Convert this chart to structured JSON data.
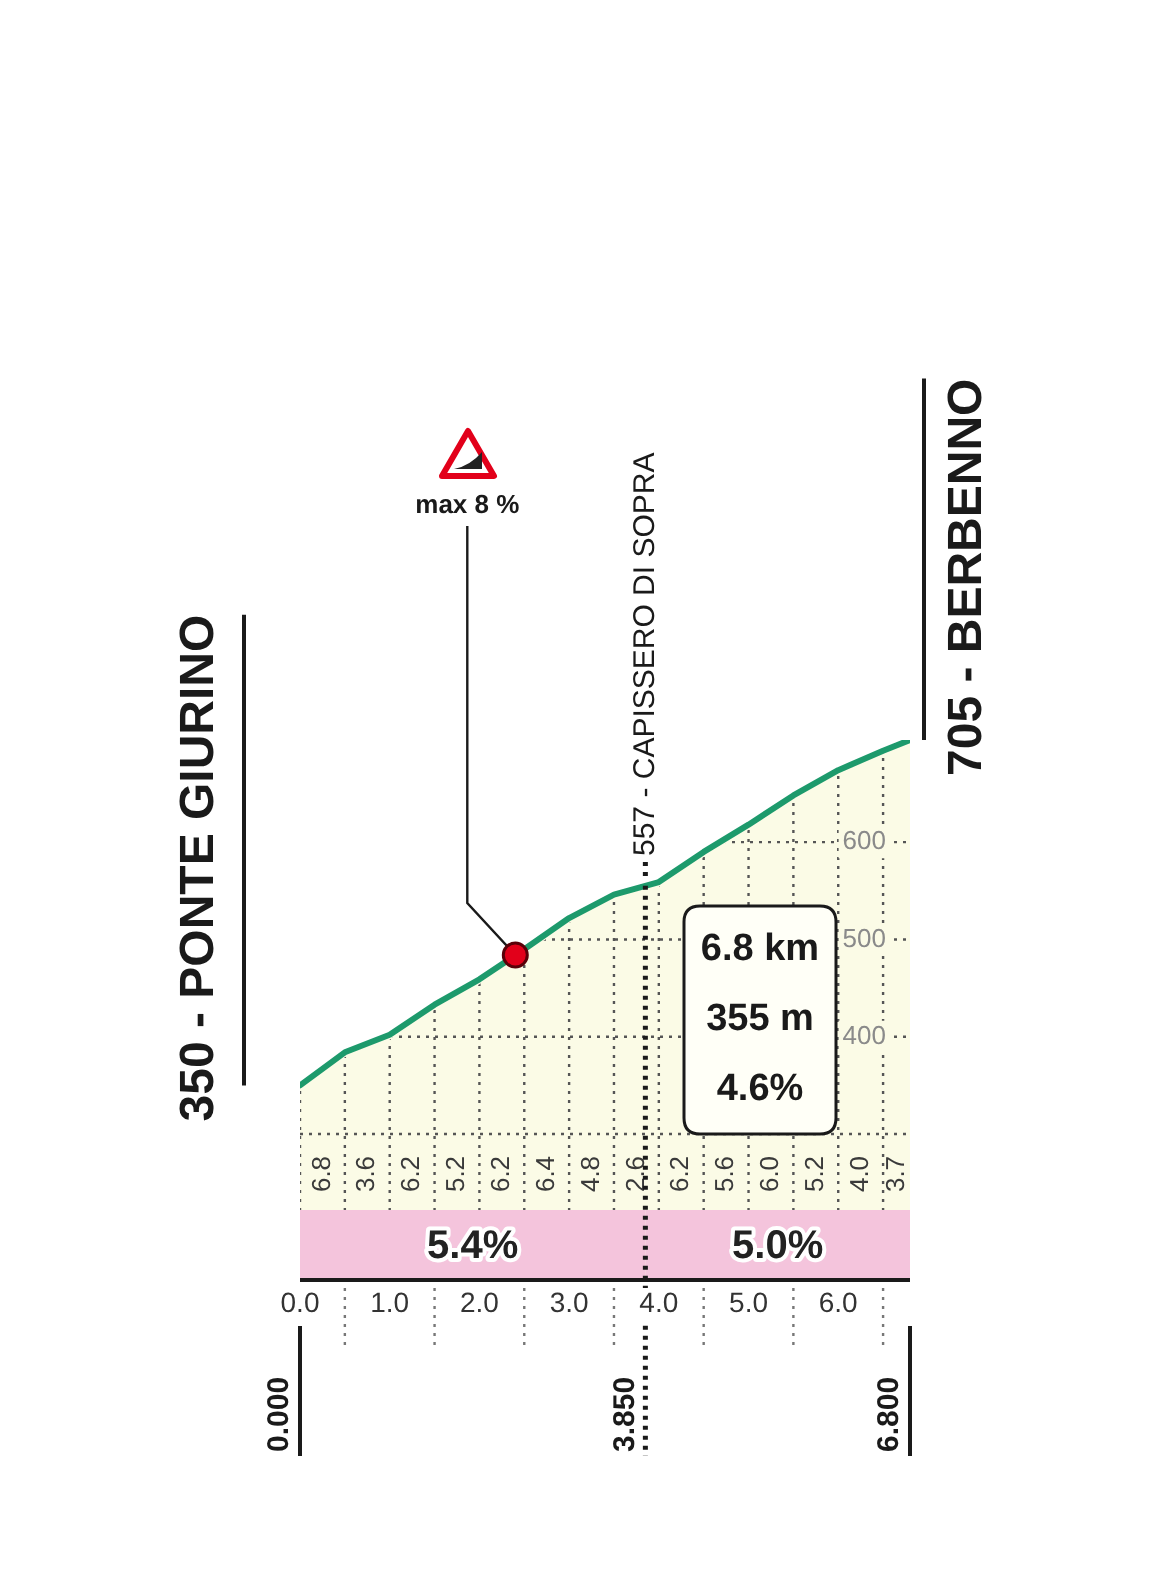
{
  "chart_data": {
    "type": "area",
    "x": [
      0,
      0.5,
      1,
      1.5,
      2,
      2.5,
      3,
      3.5,
      4,
      4.5,
      5,
      5.5,
      6,
      6.5,
      6.8
    ],
    "values": [
      350,
      384,
      402,
      433,
      459,
      490,
      522,
      546,
      559,
      590,
      618,
      648,
      674,
      694,
      705
    ],
    "color": "#1d9a6c",
    "xlim": [
      0,
      6.8
    ],
    "xticks": [
      {
        "value": 0,
        "label": "0.0"
      },
      {
        "value": 0.5,
        "label": null
      },
      {
        "value": 1,
        "label": "1.0"
      },
      {
        "value": 1.5,
        "label": null
      },
      {
        "value": 2,
        "label": "2.0"
      },
      {
        "value": 2.5,
        "label": null
      },
      {
        "value": 3,
        "label": "3.0"
      },
      {
        "value": 3.5,
        "label": null
      },
      {
        "value": 4,
        "label": "4.0"
      },
      {
        "value": 4.5,
        "label": null
      },
      {
        "value": 5,
        "label": "5.0"
      },
      {
        "value": 5.5,
        "label": null
      },
      {
        "value": 6,
        "label": "6.0"
      },
      {
        "value": 6.5,
        "label": null
      }
    ],
    "ylim": [
      150,
      705
    ],
    "yticks": [
      {
        "value": 300,
        "label": null
      },
      400,
      500,
      600
    ],
    "grid": true,
    "ref_lines": [
      {
        "axis": "x",
        "value": 0,
        "label": "0.000",
        "line_style": "solid"
      },
      {
        "axis": "x",
        "value": 3.85,
        "label": "3.850",
        "line_style": "dotted"
      },
      {
        "axis": "x",
        "value": 6.8,
        "label": "6.800",
        "line_style": "solid"
      }
    ],
    "bands": [
      {
        "axis": "x",
        "from": 0,
        "to": 3.85,
        "label": "5.4%",
        "color": "#f4c4dc"
      },
      {
        "axis": "x",
        "from": 3.85,
        "to": 6.8,
        "label": "5.0%",
        "color": "#f4c4dc"
      }
    ],
    "annotations": [
      {
        "text": "350 - PONTE GIURINO",
        "x": 0,
        "y": 350
      },
      {
        "text": "557 - CAPISSERO DI SOPRA",
        "x": 3.85,
        "y": 557
      },
      {
        "text": "705 - BERBENNO",
        "x": 6.8,
        "y": 705
      },
      {
        "text": "max 8 %",
        "x": 2.4,
        "y": 484
      },
      "6.8 km",
      "355 m",
      "4.6%",
      "6.8",
      "3.6",
      "6.2",
      "5.2",
      "6.2",
      "6.4",
      "4.8",
      "2.6",
      "6.2",
      "5.6",
      "6.0",
      "5.2",
      "4.0",
      "3.7"
    ]
  }
}
